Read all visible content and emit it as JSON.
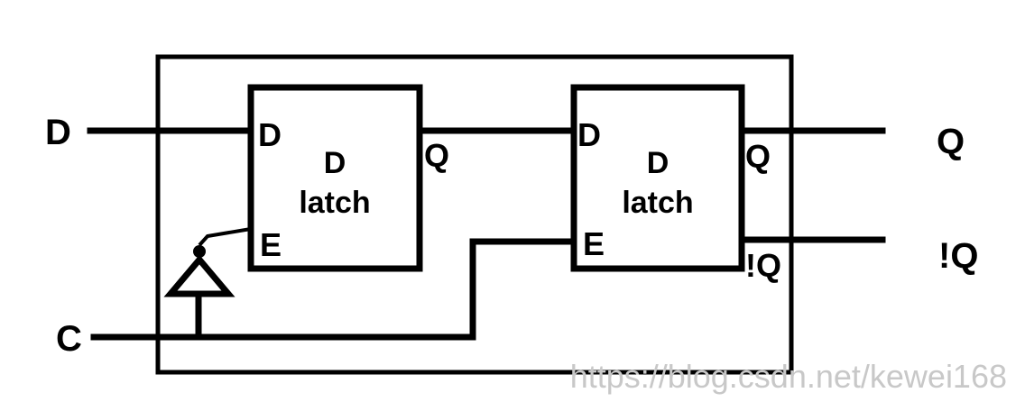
{
  "external_labels": {
    "input_d": "D",
    "input_c": "C",
    "output_q": "Q",
    "output_nq": "!Q"
  },
  "latch1": {
    "title_line1": "D",
    "title_line2": "latch",
    "pin_d": "D",
    "pin_e": "E",
    "pin_q": "Q"
  },
  "latch2": {
    "title_line1": "D",
    "title_line2": "latch",
    "pin_d": "D",
    "pin_e": "E",
    "pin_q": "Q",
    "pin_nq": "!Q"
  },
  "watermark": "https://blog.csdn.net/kewei168",
  "colors": {
    "line": "#000000",
    "background": "#ffffff",
    "watermark": "#c8c8c8"
  }
}
